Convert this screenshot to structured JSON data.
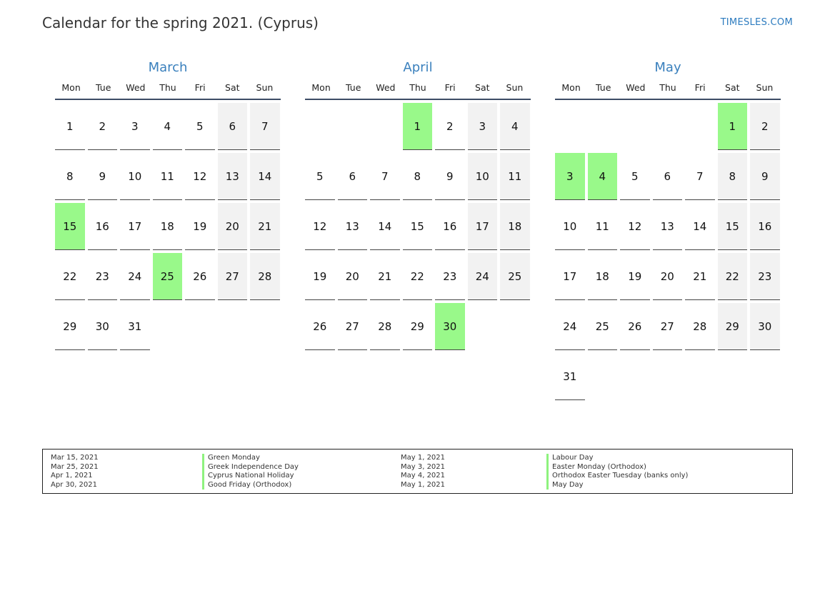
{
  "header": {
    "title": "Calendar for the spring 2021. (Cyprus)",
    "site": "TIMESLES.COM"
  },
  "colors": {
    "holiday": "#99f98a",
    "weekend": "#f2f2f2",
    "month_title": "#3a80bd",
    "site_link": "#2c7bbf"
  },
  "weekdays": [
    "Mon",
    "Tue",
    "Wed",
    "Thu",
    "Fri",
    "Sat",
    "Sun"
  ],
  "months": [
    {
      "name": "March",
      "first_weekday": 0,
      "days": 31,
      "holidays": [
        15,
        25
      ]
    },
    {
      "name": "April",
      "first_weekday": 3,
      "days": 30,
      "holidays": [
        1,
        30
      ]
    },
    {
      "name": "May",
      "first_weekday": 5,
      "days": 31,
      "holidays": [
        1,
        3,
        4
      ]
    }
  ],
  "legend": {
    "left": [
      {
        "date": "Mar 15, 2021",
        "name": "Green Monday"
      },
      {
        "date": "Mar 25, 2021",
        "name": "Greek Independence Day"
      },
      {
        "date": "Apr 1, 2021",
        "name": "Cyprus National Holiday"
      },
      {
        "date": "Apr 30, 2021",
        "name": "Good Friday (Orthodox)"
      }
    ],
    "right": [
      {
        "date": "May 1, 2021",
        "name": "Labour Day"
      },
      {
        "date": "May 3, 2021",
        "name": "Easter Monday (Orthodox)"
      },
      {
        "date": "May 4, 2021",
        "name": "Orthodox Easter Tuesday (banks only)"
      },
      {
        "date": "May 1, 2021",
        "name": "May Day"
      }
    ]
  }
}
